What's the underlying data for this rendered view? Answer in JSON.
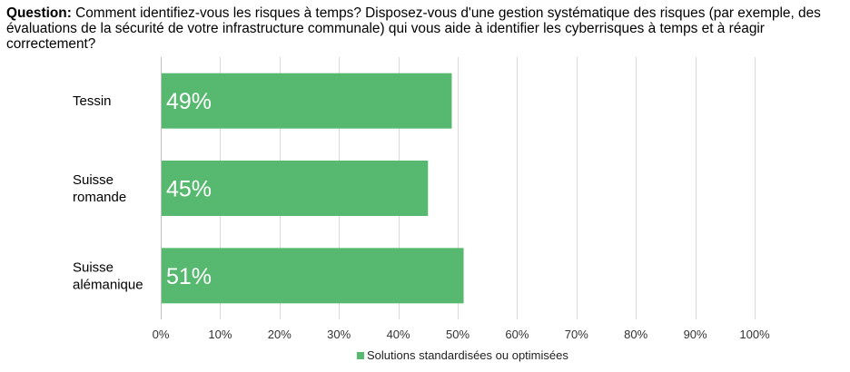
{
  "question": {
    "label": "Question:",
    "text": " Comment identifiez-vous les risques à temps? Disposez-vous d'une gestion systématique des risques (par exemple, des évaluations de la sécurité de votre infrastructure communale) qui vous aide à identifier les cyberrisques à temps et à réagir correctement?"
  },
  "colors": {
    "bar": "#57b870",
    "grid": "#d9d9d9",
    "axis": "#bfbfbf"
  },
  "chart_data": {
    "type": "bar",
    "orientation": "horizontal",
    "categories": [
      [
        "Tessin"
      ],
      [
        "Suisse",
        "romande"
      ],
      [
        "Suisse",
        "alémanique"
      ]
    ],
    "series": [
      {
        "name": "Solutions standardisées ou optimisées",
        "values": [
          49,
          45,
          51
        ],
        "labels": [
          "49%",
          "45%",
          "51%"
        ]
      }
    ],
    "xlim": [
      0,
      100
    ],
    "xticks": [
      0,
      10,
      20,
      30,
      40,
      50,
      60,
      70,
      80,
      90,
      100
    ],
    "xtick_labels": [
      "0%",
      "10%",
      "20%",
      "30%",
      "40%",
      "50%",
      "60%",
      "70%",
      "80%",
      "90%",
      "100%"
    ],
    "grid": true,
    "legend_position": "bottom"
  }
}
